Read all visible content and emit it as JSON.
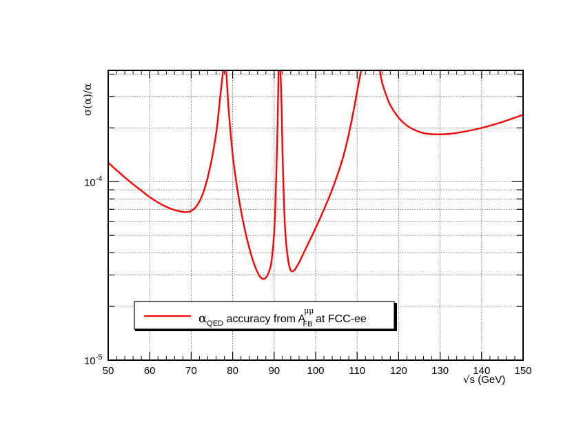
{
  "chart_data": {
    "type": "line",
    "xlabel_sqrt": "√",
    "xlabel": "s (GeV)",
    "ylabel": "σ(α)/α",
    "xlim": [
      50,
      150
    ],
    "ylim": [
      1e-05,
      0.00042
    ],
    "ylog": true,
    "grid": true,
    "legend_position": "bottom-left",
    "x_ticks": [
      50,
      60,
      70,
      80,
      90,
      100,
      110,
      120,
      130,
      140,
      150
    ],
    "x_tick_labels": [
      "50",
      "60",
      "70",
      "80",
      "90",
      "100",
      "110",
      "120",
      "130",
      "140",
      "150"
    ],
    "y_ticks": [
      {
        "value": 1e-05,
        "base": "10",
        "exp": "-5"
      },
      {
        "value": 0.0001,
        "base": "10",
        "exp": "-4"
      }
    ],
    "series": [
      {
        "legend_main": "α",
        "legend_sub": "QED",
        "legend_mid": " accuracy from A",
        "legend_sup": "μμ",
        "legend_sub2": "FB",
        "legend_end": " at FCC-ee",
        "color": "#ff0000",
        "segments": [
          {
            "x": [
              50,
              52,
              55,
              58,
              60,
              62,
              64,
              66,
              68,
              69,
              70,
              71,
              72,
              73,
              74,
              75,
              76,
              76.5,
              77,
              77.5,
              77.8,
              78.1
            ],
            "y": [
              0.000128,
              0.000116,
              0.000101,
              8.9e-05,
              8.2e-05,
              7.65e-05,
              7.23e-05,
              6.93e-05,
              6.77e-05,
              6.75e-05,
              6.85e-05,
              7.15e-05,
              7.75e-05,
              8.8e-05,
              0.000106,
              0.000135,
              0.000185,
              0.00023,
              0.0003,
              0.00038,
              0.00044,
              0.00044
            ]
          },
          {
            "x": [
              78.4,
              79,
              80,
              81,
              82,
              83,
              84,
              85,
              86,
              87,
              88,
              89,
              89.5,
              90,
              90.3,
              90.6,
              90.8,
              91,
              91.1
            ],
            "y": [
              0.00044,
              0.00026,
              0.000142,
              9.5e-05,
              6.9e-05,
              5.3e-05,
              4.25e-05,
              3.55e-05,
              3.1e-05,
              2.87e-05,
              2.9e-05,
              3.25e-05,
              3.8e-05,
              5.2e-05,
              7.5e-05,
              0.00013,
              0.0002,
              0.00034,
              0.00044
            ]
          },
          {
            "x": [
              91.5,
              91.8,
              92,
              92.3,
              92.6,
              93,
              93.5,
              94,
              94.5,
              95,
              96,
              97,
              98,
              100,
              102,
              104,
              106,
              107,
              108,
              109,
              110,
              110.5,
              111,
              111.3
            ],
            "y": [
              0.00044,
              0.00026,
              0.00015,
              8.5e-05,
              5.65e-05,
              4.25e-05,
              3.5e-05,
              3.18e-05,
              3.15e-05,
              3.22e-05,
              3.52e-05,
              3.93e-05,
              4.4e-05,
              5.5e-05,
              6.98e-05,
              9.05e-05,
              0.000123,
              0.000148,
              0.000185,
              0.00024,
              0.00032,
              0.00037,
              0.00042,
              0.00044
            ]
          },
          {
            "x": [
              115.3,
              116,
              117,
              118,
              120,
              122,
              124,
              126,
              128,
              130,
              132,
              135,
              140,
              145,
              150
            ],
            "y": [
              0.00044,
              0.00036,
              0.000305,
              0.000268,
              0.000228,
              0.000206,
              0.000194,
              0.000187,
              0.0001845,
              0.000184,
              0.000185,
              0.000189,
              0.0002,
              0.000216,
              0.000237
            ]
          }
        ]
      }
    ]
  }
}
